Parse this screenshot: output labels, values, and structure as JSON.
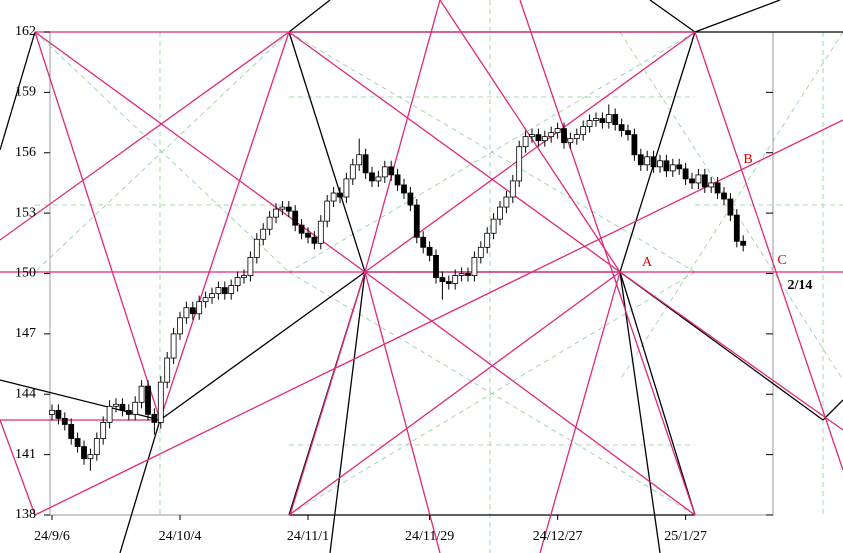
{
  "chart_data": {
    "type": "candlestick",
    "categories": [
      "24/9/6",
      null,
      null,
      null,
      null,
      null,
      null,
      null,
      null,
      null,
      null,
      null,
      null,
      null,
      null,
      null,
      null,
      null,
      null,
      null,
      "24/10/4",
      null,
      null,
      null,
      null,
      null,
      null,
      null,
      null,
      null,
      null,
      null,
      null,
      null,
      null,
      null,
      null,
      null,
      null,
      null,
      "24/11/1",
      null,
      null,
      null,
      null,
      null,
      null,
      null,
      null,
      null,
      null,
      null,
      null,
      null,
      null,
      null,
      null,
      null,
      null,
      "24/11/29",
      null,
      null,
      null,
      null,
      null,
      null,
      null,
      null,
      null,
      null,
      null,
      null,
      null,
      null,
      null,
      null,
      null,
      null,
      null,
      "24/12/27",
      null,
      null,
      null,
      null,
      null,
      null,
      null,
      null,
      null,
      null,
      null,
      null,
      null,
      null,
      null,
      null,
      null,
      null,
      null,
      "25/1/27",
      null,
      null,
      null,
      null,
      null,
      null,
      null,
      null,
      null
    ],
    "open": [
      143.0,
      143.2,
      142.8,
      142.5,
      141.8,
      141.4,
      140.8,
      141.0,
      141.8,
      142.6,
      143.4,
      143.5,
      143.2,
      143.0,
      143.6,
      144.4,
      143.0,
      142.6,
      144.6,
      145.8,
      147.0,
      147.8,
      148.3,
      148.0,
      148.6,
      148.8,
      149.0,
      149.3,
      149.0,
      149.4,
      149.8,
      149.9,
      150.8,
      151.7,
      152.2,
      152.8,
      153.2,
      153.3,
      153.1,
      152.4,
      152.0,
      151.8,
      151.5,
      152.6,
      153.6,
      154.0,
      153.8,
      154.7,
      155.4,
      155.9,
      155.0,
      154.6,
      154.8,
      155.3,
      154.9,
      154.4,
      154.0,
      153.4,
      151.8,
      151.3,
      150.9,
      149.8,
      149.6,
      149.5,
      149.9,
      150.0,
      149.9,
      150.8,
      151.3,
      152.0,
      152.7,
      153.3,
      153.8,
      154.6,
      156.3,
      156.8,
      156.9,
      156.6,
      156.8,
      157.0,
      157.2,
      156.5,
      156.7,
      156.9,
      157.3,
      157.6,
      157.7,
      157.5,
      157.9,
      157.4,
      157.1,
      156.9,
      155.9,
      155.4,
      155.8,
      155.3,
      155.6,
      155.1,
      155.4,
      155.2,
      154.7,
      154.5,
      154.9,
      154.3,
      154.5,
      154.0,
      153.7,
      152.9,
      151.6
    ],
    "high": [
      143.5,
      143.5,
      143.1,
      142.8,
      142.1,
      141.7,
      141.3,
      142.1,
      142.9,
      143.7,
      143.8,
      143.8,
      143.5,
      143.9,
      144.7,
      144.7,
      143.3,
      144.9,
      146.1,
      147.3,
      148.1,
      148.6,
      148.6,
      148.9,
      149.1,
      149.3,
      149.6,
      149.6,
      149.7,
      150.1,
      150.2,
      151.1,
      152.0,
      152.5,
      153.1,
      153.5,
      153.6,
      153.6,
      153.4,
      152.7,
      152.3,
      152.1,
      152.9,
      153.9,
      154.3,
      154.3,
      155.0,
      155.7,
      156.7,
      156.2,
      155.3,
      155.1,
      155.6,
      155.6,
      155.2,
      154.7,
      154.3,
      153.7,
      152.1,
      151.6,
      151.2,
      150.1,
      149.9,
      150.2,
      150.3,
      150.3,
      151.1,
      151.6,
      152.3,
      153.0,
      153.6,
      154.1,
      154.9,
      156.6,
      157.1,
      157.2,
      157.2,
      157.1,
      157.3,
      157.5,
      157.5,
      157.0,
      157.2,
      157.6,
      157.9,
      158.0,
      158.0,
      158.4,
      158.2,
      157.7,
      157.4,
      157.2,
      156.2,
      156.1,
      156.1,
      155.9,
      155.9,
      155.7,
      155.7,
      155.5,
      155.0,
      155.2,
      155.2,
      154.8,
      154.8,
      154.3,
      154.0,
      153.2,
      151.9
    ],
    "low": [
      142.7,
      142.5,
      142.2,
      141.5,
      141.1,
      140.5,
      140.2,
      140.7,
      141.5,
      142.3,
      143.1,
      142.9,
      142.7,
      142.7,
      143.3,
      142.7,
      142.0,
      142.3,
      144.3,
      145.5,
      146.7,
      147.5,
      147.7,
      147.7,
      148.3,
      148.5,
      148.7,
      148.7,
      148.7,
      149.1,
      149.5,
      149.6,
      150.5,
      151.4,
      151.9,
      152.5,
      152.9,
      152.8,
      152.1,
      151.7,
      151.5,
      151.2,
      151.2,
      152.3,
      153.3,
      153.5,
      153.5,
      154.4,
      155.1,
      154.7,
      154.3,
      154.3,
      154.5,
      154.6,
      154.1,
      153.7,
      153.1,
      151.5,
      151.0,
      150.6,
      149.5,
      148.7,
      149.2,
      149.2,
      149.6,
      149.6,
      149.6,
      150.5,
      151.0,
      151.7,
      152.4,
      153.0,
      153.5,
      154.3,
      156.0,
      156.5,
      156.3,
      156.3,
      156.5,
      156.7,
      156.2,
      156.2,
      156.4,
      156.6,
      157.0,
      157.3,
      157.2,
      157.2,
      157.1,
      156.8,
      156.6,
      155.6,
      155.1,
      155.1,
      155.0,
      155.0,
      154.8,
      154.8,
      154.9,
      154.4,
      154.2,
      154.2,
      154.0,
      154.0,
      153.7,
      153.4,
      152.6,
      151.3,
      151.1
    ],
    "close": [
      143.2,
      142.8,
      142.5,
      141.8,
      141.4,
      140.8,
      141.0,
      141.8,
      142.6,
      143.4,
      143.5,
      143.2,
      143.0,
      143.6,
      144.4,
      143.0,
      142.6,
      144.6,
      145.8,
      147.0,
      147.8,
      148.3,
      148.0,
      148.6,
      148.8,
      149.0,
      149.3,
      149.0,
      149.4,
      149.8,
      149.9,
      150.8,
      151.7,
      152.2,
      152.8,
      153.2,
      153.3,
      153.1,
      152.4,
      152.0,
      151.8,
      151.5,
      152.6,
      153.6,
      154.0,
      153.8,
      154.7,
      155.4,
      155.9,
      155.0,
      154.6,
      154.8,
      155.3,
      154.9,
      154.4,
      154.0,
      153.4,
      151.8,
      151.3,
      150.9,
      149.8,
      149.6,
      149.5,
      149.9,
      150.0,
      149.9,
      150.8,
      151.3,
      152.0,
      152.7,
      153.3,
      153.8,
      154.6,
      156.3,
      156.8,
      156.9,
      156.6,
      156.8,
      157.0,
      157.2,
      156.5,
      156.7,
      156.9,
      157.3,
      157.6,
      157.7,
      157.5,
      157.9,
      157.4,
      157.1,
      156.9,
      155.9,
      155.4,
      155.8,
      155.3,
      155.6,
      155.1,
      155.4,
      155.2,
      154.7,
      154.5,
      154.9,
      154.3,
      154.5,
      154.0,
      153.7,
      152.9,
      151.6,
      151.4
    ],
    "ylim": [
      138,
      162
    ],
    "yticks": [
      138,
      141,
      144,
      147,
      150,
      153,
      156,
      159,
      162
    ],
    "up_color": "#ffffff",
    "down_color": "#000000",
    "annotations": [
      "A",
      "B",
      "C",
      "2/14"
    ]
  }
}
